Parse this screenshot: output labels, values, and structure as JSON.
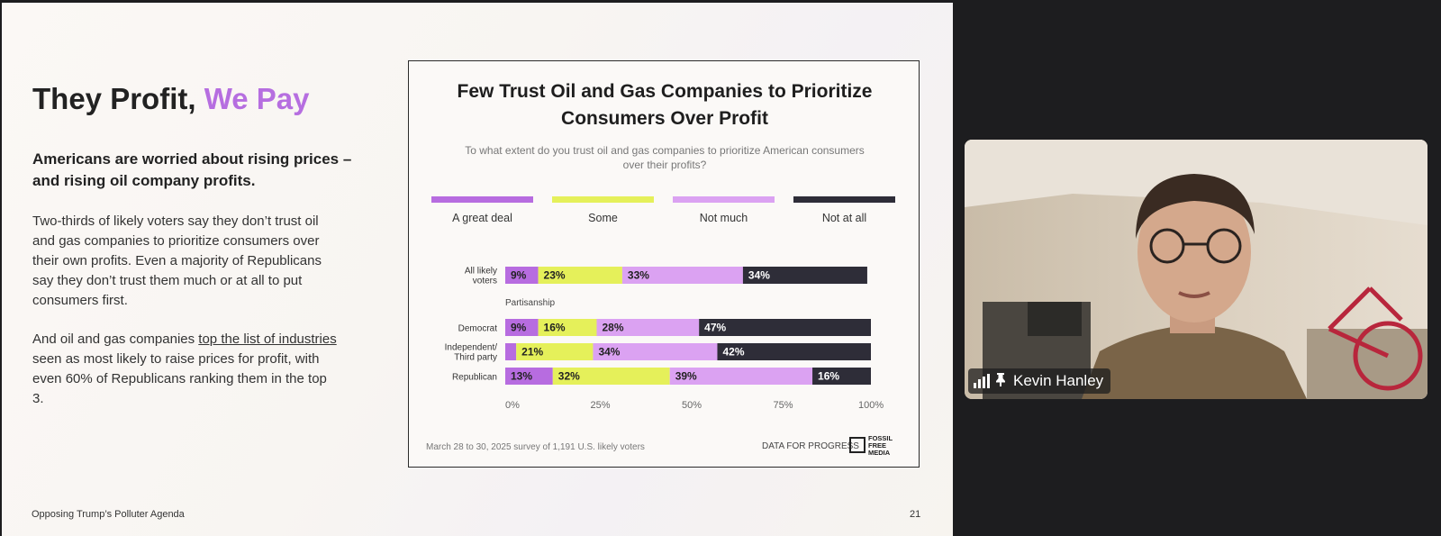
{
  "slide": {
    "title_part1": "They Profit,",
    "title_part2": "We Pay",
    "lead": "Americans are worried about rising prices – and rising oil company profits.",
    "para1": "Two-thirds of likely voters say they don’t trust oil and gas companies to prioritize consumers over their own profits. Even a majority of Republicans say they don’t trust them much or at all to put consumers first.",
    "para2_before": "And oil and gas companies ",
    "para2_link": "top the list of industries",
    "para2_after": " seen as most likely to raise prices for profit, with even 60% of Republicans ranking them in the top 3.",
    "footer": "Opposing Trump’s Polluter Agenda",
    "page_number": "21"
  },
  "chart_data": {
    "type": "bar",
    "orientation": "horizontal-stacked",
    "title_line1": "Few Trust Oil and Gas Companies to Prioritize",
    "title_line2": "Consumers Over Profit",
    "subtitle_line1": "To what extent do you trust oil and gas companies to prioritize American consumers",
    "subtitle_line2": "over their profits?",
    "legend": [
      {
        "label": "A great deal",
        "color": "#b76ce0"
      },
      {
        "label": "Some",
        "color": "#e5f05a"
      },
      {
        "label": "Not much",
        "color": "#dba2f2"
      },
      {
        "label": "Not at all",
        "color": "#2e2d38"
      }
    ],
    "rows": [
      {
        "label_lines": [
          "All likely",
          "voters"
        ],
        "values": [
          9,
          23,
          33,
          34
        ],
        "labels": [
          "9%",
          "23%",
          "33%",
          "34%"
        ]
      },
      {
        "label_lines": [
          "Democrat"
        ],
        "values": [
          9,
          16,
          28,
          47
        ],
        "labels": [
          "9%",
          "16%",
          "28%",
          "47%"
        ]
      },
      {
        "label_lines": [
          "Independent/",
          "Third party"
        ],
        "values": [
          3,
          21,
          34,
          42
        ],
        "labels": [
          "",
          "21%",
          "34%",
          "42%"
        ]
      },
      {
        "label_lines": [
          "Republican"
        ],
        "values": [
          13,
          32,
          39,
          16
        ],
        "labels": [
          "13%",
          "32%",
          "39%",
          "16%"
        ]
      }
    ],
    "group_label": "Partisanship",
    "x_ticks": [
      "0%",
      "25%",
      "50%",
      "75%",
      "100%"
    ],
    "xlim": [
      0,
      100
    ],
    "source": "March 28 to 30, 2025 survey of 1,191 U.S. likely voters",
    "logo1": "DATA FOR PROGRESS",
    "logo2_lines": [
      "FOSSIL",
      "FREE",
      "MEDIA"
    ]
  },
  "video": {
    "participant_name": "Kevin Hanley"
  }
}
